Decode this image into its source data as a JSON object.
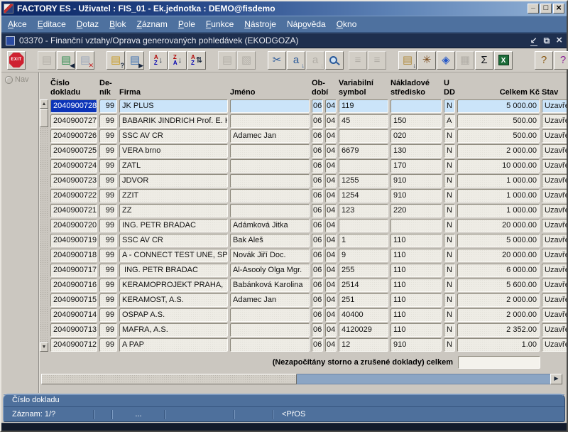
{
  "window": {
    "title": "FACTORY ES - Uživatel : FIS_01 - Ek.jednotka : DEMO@fisdemo"
  },
  "child_window": {
    "title": "03370 - Finanční vztahy/Oprava generovaných pohledávek (EKODGOZA)"
  },
  "menu": {
    "items": [
      {
        "id": "akce",
        "pre": "",
        "accel": "A",
        "post": "kce"
      },
      {
        "id": "editace",
        "pre": "",
        "accel": "E",
        "post": "ditace"
      },
      {
        "id": "dotaz",
        "pre": "",
        "accel": "D",
        "post": "otaz"
      },
      {
        "id": "blok",
        "pre": "",
        "accel": "B",
        "post": "lok"
      },
      {
        "id": "zaznam",
        "pre": "",
        "accel": "Z",
        "post": "áznam"
      },
      {
        "id": "pole",
        "pre": "",
        "accel": "P",
        "post": "ole"
      },
      {
        "id": "funkce",
        "pre": "",
        "accel": "F",
        "post": "unkce"
      },
      {
        "id": "nastroje",
        "pre": "",
        "accel": "N",
        "post": "ástroje"
      },
      {
        "id": "napoveda",
        "pre": "Náp",
        "accel": "o",
        "post": "věda"
      },
      {
        "id": "okno",
        "pre": "",
        "accel": "O",
        "post": "kno"
      }
    ]
  },
  "toolbar": {
    "buttons": [
      {
        "name": "exit-button",
        "type": "exit",
        "label": "EXIT",
        "gap": 4
      },
      {
        "name": "insert-record-button",
        "type": "glyph",
        "glyph": "▤",
        "color": "#9a978f",
        "disabled": true,
        "gap": 16
      },
      {
        "name": "create-record-button",
        "type": "glyph",
        "glyph": "▤",
        "color": "#2f8b4f",
        "overlay": "◀",
        "overlay_color": "#15243c"
      },
      {
        "name": "delete-record-button",
        "type": "glyph",
        "glyph": "▤",
        "color": "#9aa6ba",
        "overlay": "✕",
        "overlay_color": "#c01818"
      },
      {
        "name": "enter-query-button",
        "type": "glyph",
        "glyph": "▤",
        "color": "#c89c28",
        "overlay": "?",
        "overlay_color": "#15243c",
        "gap": 16
      },
      {
        "name": "execute-query-button",
        "type": "glyph",
        "glyph": "▤",
        "color": "#3a6fb0",
        "overlay": "▶",
        "overlay_color": "#15243c"
      },
      {
        "name": "sort-ascending-button",
        "type": "sort",
        "top": "A",
        "bottom": "Z",
        "arrow": "↓",
        "gap": 6
      },
      {
        "name": "sort-descending-button",
        "type": "sort",
        "top": "Z",
        "bottom": "A",
        "arrow": "↓"
      },
      {
        "name": "sort-multi-button",
        "type": "sort",
        "top": "A",
        "bottom": "Z",
        "arrow": "⇅"
      },
      {
        "name": "print-button",
        "type": "glyph",
        "glyph": "▤",
        "color": "#9a978f",
        "disabled": true,
        "gap": 16
      },
      {
        "name": "print-list-button",
        "type": "glyph",
        "glyph": "▧",
        "color": "#9a978f",
        "disabled": true
      },
      {
        "name": "cut-button",
        "type": "glyph",
        "glyph": "✂",
        "color": "#2a5a9a",
        "gap": 16
      },
      {
        "name": "copy-value-button",
        "type": "glyph",
        "glyph": "a",
        "color": "#2a5a9a",
        "overlay": "↓",
        "overlay_color": "#2a5a9a"
      },
      {
        "name": "copy-value-alt-button",
        "type": "glyph",
        "glyph": "a",
        "color": "#9a978f",
        "overlay": "↓",
        "overlay_color": "#9a978f",
        "disabled": true
      },
      {
        "name": "zoom-button",
        "type": "magnifier"
      },
      {
        "name": "list-values-button",
        "type": "glyph",
        "glyph": "≡",
        "color": "#9a978f",
        "disabled": true,
        "gap": 6
      },
      {
        "name": "tree-view-button",
        "type": "glyph",
        "glyph": "≡",
        "color": "#9a978f",
        "disabled": true
      },
      {
        "name": "document-import-button",
        "type": "glyph",
        "glyph": "▤",
        "color": "#b08a3c",
        "overlay": "↓",
        "overlay_color": "#15243c",
        "gap": 16
      },
      {
        "name": "navigator-wheel-button",
        "type": "glyph",
        "glyph": "✳",
        "color": "#7a4a1a"
      },
      {
        "name": "special-gem-button",
        "type": "glyph",
        "glyph": "◈",
        "color": "#2457c8"
      },
      {
        "name": "calendar-button",
        "type": "glyph",
        "glyph": "▦",
        "color": "#9a978f",
        "disabled": true
      },
      {
        "name": "sum-button",
        "type": "glyph",
        "glyph": "Σ",
        "color": "#15181c"
      },
      {
        "name": "excel-export-button",
        "type": "badge",
        "label": "X",
        "bg": "#1c6b38"
      },
      {
        "name": "help-tip-button",
        "type": "glyph",
        "glyph": "?",
        "color": "#8a5a14",
        "gap": 30
      },
      {
        "name": "help-button",
        "type": "glyph",
        "glyph": "?",
        "color": "#8a1f96"
      }
    ]
  },
  "nav": {
    "label": "Nav"
  },
  "table": {
    "selected_row": 0,
    "headers": [
      {
        "l1": "Číslo",
        "l2": "dokladu"
      },
      {
        "l1": "De-",
        "l2": "ník"
      },
      {
        "l1": "",
        "l2": "Firma"
      },
      {
        "l1": "",
        "l2": "Jméno"
      },
      {
        "l1": "Ob-",
        "l2": "dobí"
      },
      {
        "l1": "Variabilní",
        "l2": "symbol"
      },
      {
        "l1": "Nákladové",
        "l2": "středisko"
      },
      {
        "l1": "U",
        "l2": "DD"
      },
      {
        "l1": "",
        "l2": "Celkem Kč"
      },
      {
        "l1": "",
        "l2": "Stav"
      }
    ],
    "rows": [
      [
        "2040900728",
        "99",
        "JK PLUS",
        "",
        "06",
        "04",
        "119",
        "",
        "N",
        "5 000.00",
        "Uzavřen"
      ],
      [
        "2040900727",
        "99",
        "BABARIK JINDRICH Prof. E. Her",
        "",
        "06",
        "04",
        "45",
        "150",
        "A",
        "500.00",
        "Uzavřen"
      ],
      [
        "2040900726",
        "99",
        "SSC AV CR",
        "Adamec Jan",
        "06",
        "04",
        "",
        "020",
        "N",
        "500.00",
        "Uzavřen"
      ],
      [
        "2040900725",
        "99",
        "VERA brno",
        "",
        "06",
        "04",
        "6679",
        "130",
        "N",
        "2 000.00",
        "Uzavřen"
      ],
      [
        "2040900724",
        "99",
        "ZATL",
        "",
        "06",
        "04",
        "",
        "170",
        "N",
        "10 000.00",
        "Uzavřen"
      ],
      [
        "2040900723",
        "99",
        "JDVOR",
        "",
        "06",
        "04",
        "1255",
        "910",
        "N",
        "1 000.00",
        "Uzavřen"
      ],
      [
        "2040900722",
        "99",
        "ZZIT",
        "",
        "06",
        "04",
        "1254",
        "910",
        "N",
        "1 000.00",
        "Uzavřen"
      ],
      [
        "2040900721",
        "99",
        "ZZ",
        "",
        "06",
        "04",
        "123",
        "220",
        "N",
        "1 000.00",
        "Uzavřen"
      ],
      [
        "2040900720",
        "99",
        "ING. PETR BRADAC",
        "Adámková Jitka",
        "06",
        "04",
        "",
        "",
        "N",
        "20 000.00",
        "Uzavřen"
      ],
      [
        "2040900719",
        "99",
        "SSC AV CR",
        "Bak Aleš",
        "06",
        "04",
        "1",
        "110",
        "N",
        "5 000.00",
        "Uzavřen"
      ],
      [
        "2040900718",
        "99",
        "A - CONNECT TEST UNE, SPOL",
        "Novák Jiří Doc.",
        "06",
        "04",
        "9",
        "110",
        "N",
        "20 000.00",
        "Uzavřen"
      ],
      [
        "2040900717",
        "99",
        " ING. PETR BRADAC",
        "Al-Asooly Olga Mgr.",
        "06",
        "04",
        "255",
        "110",
        "N",
        "6 000.00",
        "Uzavřen"
      ],
      [
        "2040900716",
        "99",
        "KERAMOPROJEKT PRAHA,",
        "Babánková Karolina",
        "06",
        "04",
        "2514",
        "110",
        "N",
        "5 600.00",
        "Uzavřen"
      ],
      [
        "2040900715",
        "99",
        "KERAMOST, A.S.",
        "Adamec Jan",
        "06",
        "04",
        "251",
        "110",
        "N",
        "2 000.00",
        "Uzavřen"
      ],
      [
        "2040900714",
        "99",
        "OSPAP A.S.",
        "",
        "06",
        "04",
        "40400",
        "110",
        "N",
        "2 000.00",
        "Uzavřen"
      ],
      [
        "2040900713",
        "99",
        "MAFRA, A.S.",
        "",
        "06",
        "04",
        "4120029",
        "110",
        "N",
        "2 352.00",
        "Uzavřen"
      ],
      [
        "2040900712",
        "99",
        "A PAP",
        "",
        "06",
        "04",
        "12",
        "910",
        "N",
        "1.00",
        "Uzavřen"
      ]
    ]
  },
  "totals": {
    "label": "(Nezapočítány storno a zrušené doklady) celkem",
    "value": ""
  },
  "hint": {
    "text": "Číslo dokladu"
  },
  "status": {
    "record": "Záznam: 1/?",
    "dots": "...",
    "mode": "<PřOS"
  }
}
